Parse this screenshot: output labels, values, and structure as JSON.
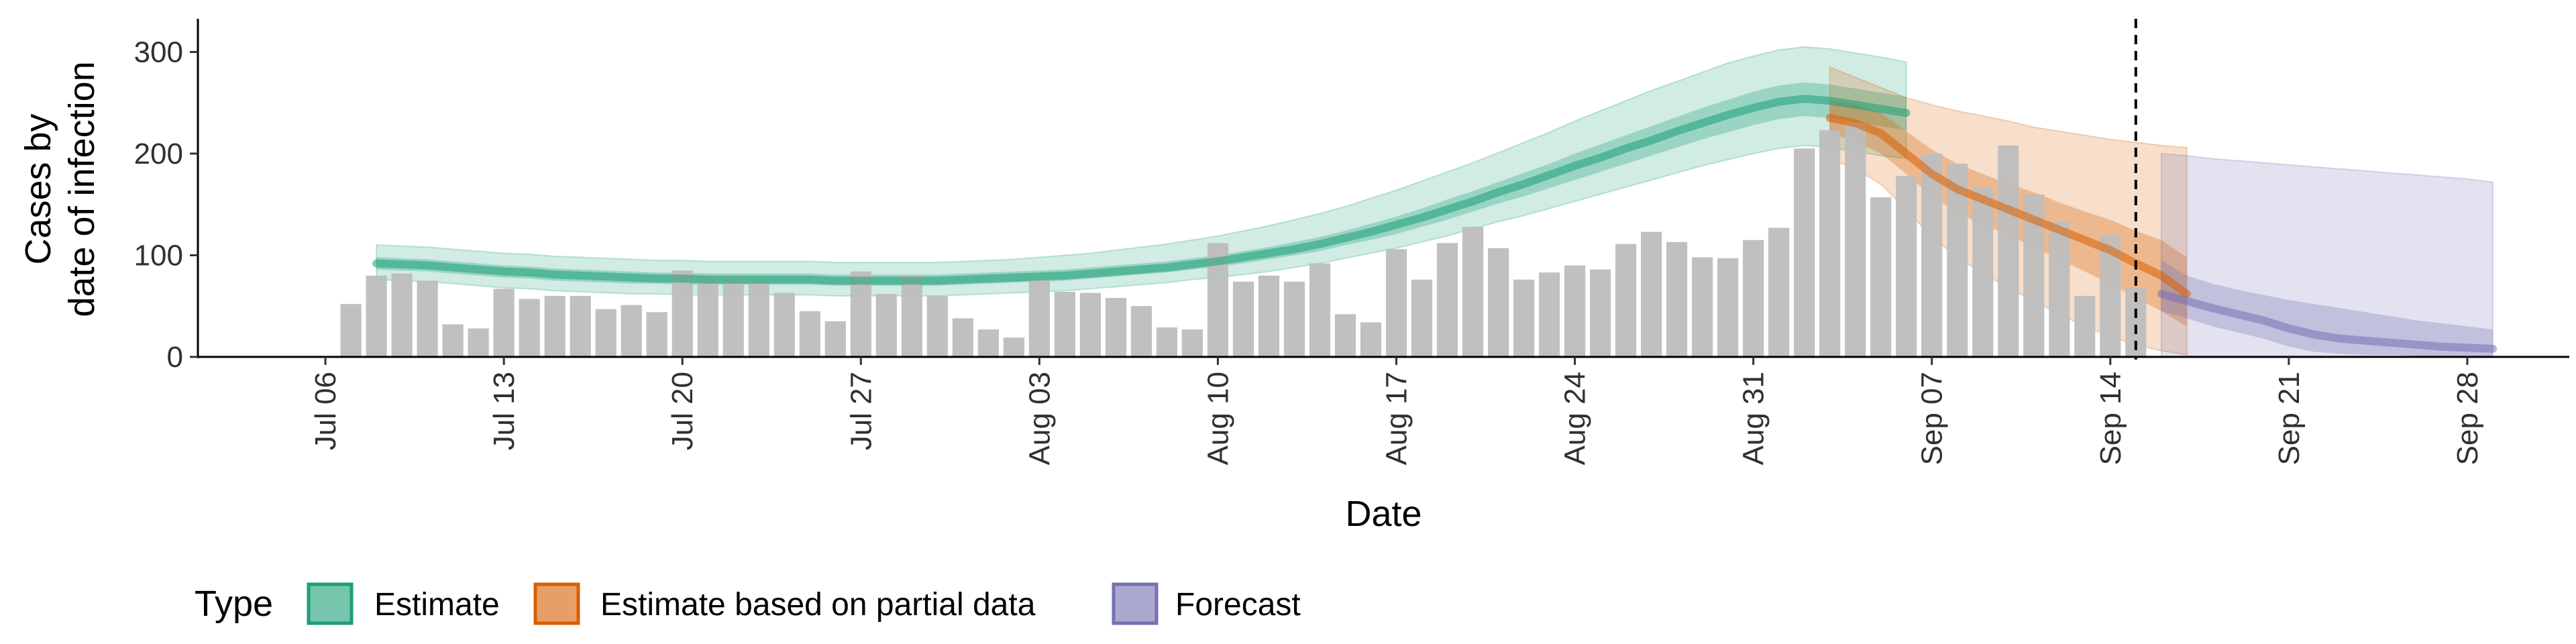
{
  "chart_data": {
    "type": "bar",
    "xlabel": "Date",
    "ylabel": [
      "Cases by",
      "date of infection"
    ],
    "ylim": [
      0,
      330
    ],
    "yticks": [
      0,
      100,
      200,
      300
    ],
    "x_range": [
      "2020-07-01",
      "2020-10-02"
    ],
    "x_ticks": [
      {
        "date": "2020-07-06",
        "label": "Jul 06"
      },
      {
        "date": "2020-07-13",
        "label": "Jul 13"
      },
      {
        "date": "2020-07-20",
        "label": "Jul 20"
      },
      {
        "date": "2020-07-27",
        "label": "Jul 27"
      },
      {
        "date": "2020-08-03",
        "label": "Aug 03"
      },
      {
        "date": "2020-08-10",
        "label": "Aug 10"
      },
      {
        "date": "2020-08-17",
        "label": "Aug 17"
      },
      {
        "date": "2020-08-24",
        "label": "Aug 24"
      },
      {
        "date": "2020-08-31",
        "label": "Aug 31"
      },
      {
        "date": "2020-09-07",
        "label": "Sep 07"
      },
      {
        "date": "2020-09-14",
        "label": "Sep 14"
      },
      {
        "date": "2020-09-21",
        "label": "Sep 21"
      },
      {
        "date": "2020-09-28",
        "label": "Sep 28"
      }
    ],
    "reference_line": {
      "date": "2020-09-15",
      "style": "dashed"
    },
    "legend": {
      "title": "Type",
      "position": "bottom-left",
      "items": [
        "Estimate",
        "Estimate based on partial data",
        "Forecast"
      ]
    },
    "colors": {
      "bars": "#bdbdbd",
      "Estimate": "#1b9e77",
      "Estimate based on partial data": "#d95f02",
      "Forecast": "#7570b3"
    },
    "bars": {
      "start_date": "2020-07-07",
      "values": [
        52,
        80,
        82,
        75,
        32,
        28,
        67,
        57,
        60,
        60,
        47,
        51,
        44,
        85,
        80,
        78,
        75,
        63,
        45,
        35,
        84,
        62,
        80,
        60,
        38,
        27,
        19,
        75,
        64,
        63,
        58,
        50,
        29,
        27,
        112,
        74,
        80,
        74,
        92,
        42,
        34,
        106,
        76,
        112,
        128,
        107,
        76,
        83,
        90,
        86,
        111,
        123,
        113,
        98,
        97,
        115,
        127,
        205,
        223,
        230,
        157,
        178,
        200,
        190,
        167,
        208,
        160,
        133,
        60,
        120,
        68
      ]
    },
    "series": [
      {
        "name": "Estimate",
        "start_date": "2020-07-08",
        "median": [
          92,
          91,
          90,
          88,
          86,
          84,
          83,
          81,
          80,
          79,
          78,
          77,
          77,
          76,
          76,
          76,
          76,
          76,
          75,
          75,
          75,
          75,
          75,
          76,
          77,
          78,
          79,
          80,
          82,
          84,
          86,
          88,
          91,
          94,
          98,
          102,
          106,
          111,
          117,
          123,
          130,
          137,
          145,
          153,
          162,
          170,
          179,
          188,
          196,
          205,
          213,
          222,
          230,
          238,
          245,
          251,
          254,
          252,
          248,
          244,
          240
        ],
        "inner_low": [
          86,
          85,
          84,
          82,
          80,
          78,
          77,
          75,
          74,
          73,
          72,
          72,
          71,
          71,
          71,
          71,
          71,
          71,
          70,
          70,
          70,
          70,
          70,
          71,
          72,
          73,
          74,
          75,
          77,
          79,
          81,
          83,
          86,
          89,
          92,
          96,
          100,
          104,
          110,
          115,
          121,
          128,
          135,
          143,
          151,
          158,
          166,
          174,
          182,
          190,
          198,
          206,
          214,
          221,
          228,
          234,
          237,
          235,
          231,
          227,
          223
        ],
        "inner_high": [
          98,
          97,
          96,
          94,
          92,
          90,
          89,
          87,
          86,
          85,
          84,
          83,
          83,
          82,
          82,
          82,
          82,
          82,
          81,
          81,
          81,
          81,
          81,
          82,
          83,
          84,
          85,
          86,
          88,
          90,
          92,
          94,
          97,
          100,
          104,
          108,
          113,
          118,
          124,
          131,
          138,
          146,
          155,
          163,
          172,
          181,
          190,
          200,
          209,
          218,
          227,
          236,
          245,
          253,
          261,
          267,
          270,
          268,
          264,
          260,
          256
        ],
        "outer_low": [
          76,
          75,
          74,
          72,
          70,
          68,
          67,
          65,
          64,
          63,
          62,
          62,
          61,
          61,
          61,
          61,
          61,
          61,
          60,
          60,
          60,
          60,
          60,
          61,
          62,
          63,
          64,
          65,
          67,
          69,
          71,
          73,
          76,
          78,
          81,
          84,
          88,
          92,
          97,
          102,
          107,
          113,
          119,
          126,
          133,
          139,
          146,
          153,
          160,
          167,
          174,
          181,
          188,
          194,
          200,
          205,
          208,
          206,
          202,
          198,
          195
        ],
        "outer_high": [
          110,
          109,
          108,
          106,
          104,
          102,
          101,
          99,
          98,
          97,
          96,
          95,
          95,
          94,
          94,
          94,
          94,
          94,
          93,
          93,
          93,
          93,
          93,
          94,
          95,
          96,
          98,
          100,
          102,
          105,
          108,
          111,
          115,
          119,
          124,
          129,
          135,
          141,
          148,
          156,
          164,
          173,
          182,
          191,
          201,
          211,
          221,
          232,
          242,
          252,
          262,
          271,
          280,
          289,
          296,
          302,
          305,
          303,
          299,
          295,
          290
        ]
      },
      {
        "name": "Estimate based on partial data",
        "start_date": "2020-09-03",
        "median": [
          235,
          230,
          220,
          200,
          180,
          165,
          155,
          145,
          135,
          125,
          115,
          105,
          92,
          80,
          62
        ],
        "inner_low": [
          220,
          212,
          200,
          180,
          158,
          142,
          130,
          120,
          108,
          96,
          84,
          72,
          58,
          45,
          30
        ],
        "inner_high": [
          252,
          248,
          240,
          222,
          204,
          190,
          180,
          170,
          162,
          152,
          143,
          135,
          124,
          115,
          98
        ],
        "outer_low": [
          195,
          185,
          170,
          145,
          118,
          98,
          82,
          68,
          55,
          42,
          30,
          20,
          12,
          6,
          2
        ],
        "outer_high": [
          285,
          275,
          265,
          255,
          248,
          242,
          237,
          232,
          226,
          222,
          218,
          214,
          211,
          208,
          206
        ]
      },
      {
        "name": "Forecast",
        "start_date": "2020-09-16",
        "median": [
          62,
          55,
          48,
          42,
          36,
          28,
          22,
          18,
          16,
          14,
          12,
          10,
          9,
          8
        ],
        "inner_low": [
          45,
          38,
          30,
          24,
          18,
          10,
          5,
          3,
          2,
          2,
          1,
          1,
          1,
          1
        ],
        "inner_high": [
          95,
          80,
          72,
          66,
          61,
          56,
          52,
          48,
          44,
          40,
          36,
          33,
          30,
          27
        ],
        "outer_low": [
          0,
          0,
          0,
          0,
          0,
          0,
          0,
          0,
          0,
          0,
          0,
          0,
          0,
          0
        ],
        "outer_high": [
          200,
          198,
          195,
          193,
          191,
          189,
          187,
          185,
          183,
          181,
          179,
          177,
          175,
          172
        ]
      }
    ]
  }
}
